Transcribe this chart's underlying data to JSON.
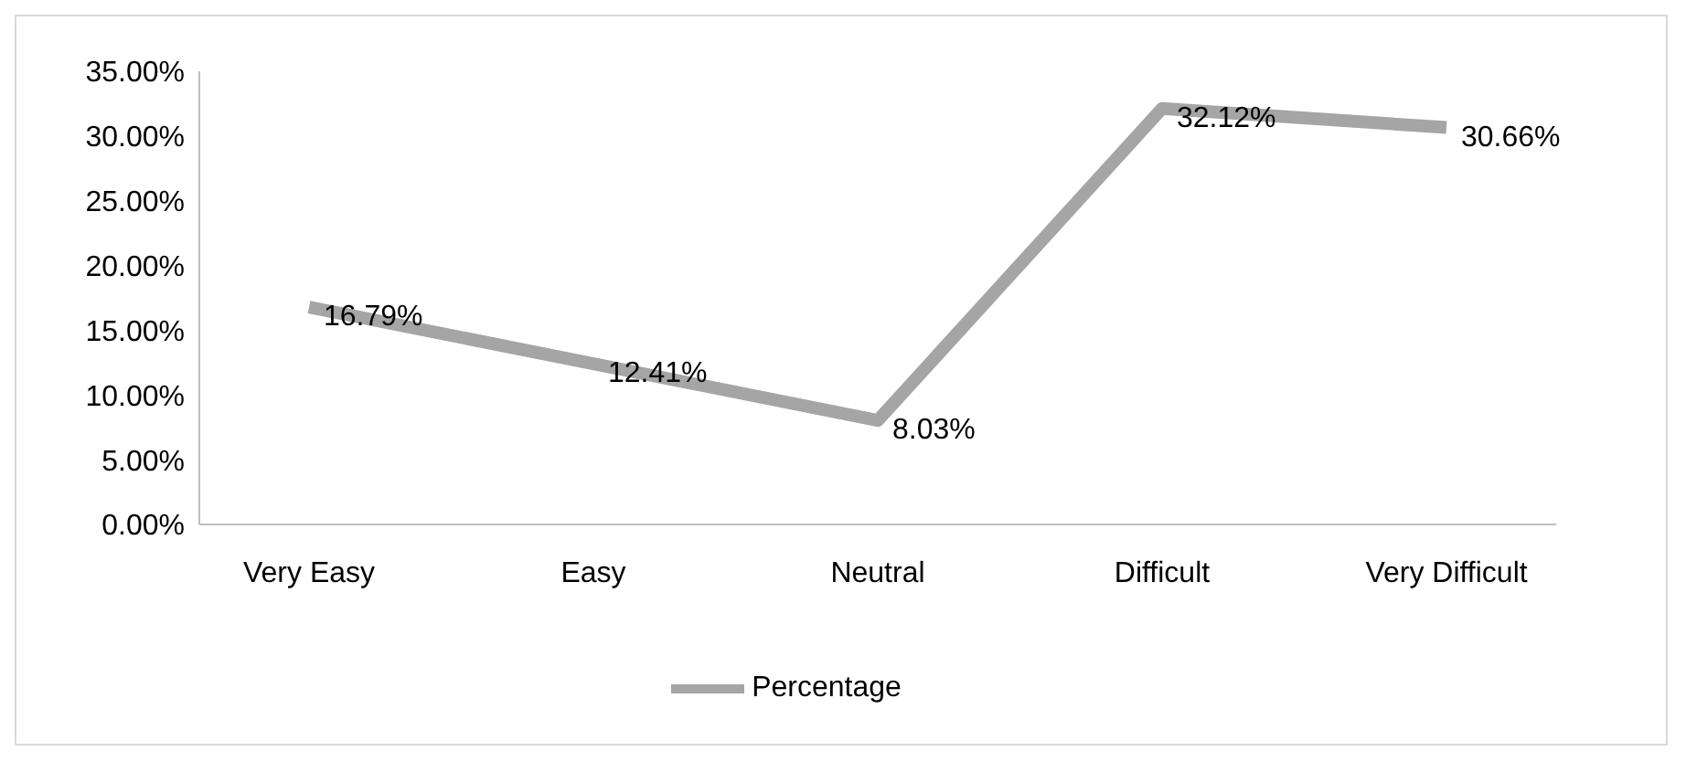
{
  "chart_data": {
    "type": "line",
    "categories": [
      "Very Easy",
      "Easy",
      "Neutral",
      "Difficult",
      "Very Difficult"
    ],
    "series": [
      {
        "name": "Percentage",
        "color": "#a5a5a5",
        "values": [
          16.79,
          12.41,
          8.03,
          32.12,
          30.66
        ],
        "value_labels": [
          "16.79%",
          "12.41%",
          "8.03%",
          "32.12%",
          "30.66%"
        ]
      }
    ],
    "ylim": [
      0,
      35
    ],
    "yticks": [
      {
        "value": 0,
        "label": "0.00%"
      },
      {
        "value": 5,
        "label": "5.00%"
      },
      {
        "value": 10,
        "label": "10.00%"
      },
      {
        "value": 15,
        "label": "15.00%"
      },
      {
        "value": 20,
        "label": "20.00%"
      },
      {
        "value": 25,
        "label": "25.00%"
      },
      {
        "value": 30,
        "label": "30.00%"
      },
      {
        "value": 35,
        "label": "35.00%"
      }
    ],
    "grid": false,
    "legend": "bottom",
    "marker": "none",
    "line_style": "solid"
  }
}
